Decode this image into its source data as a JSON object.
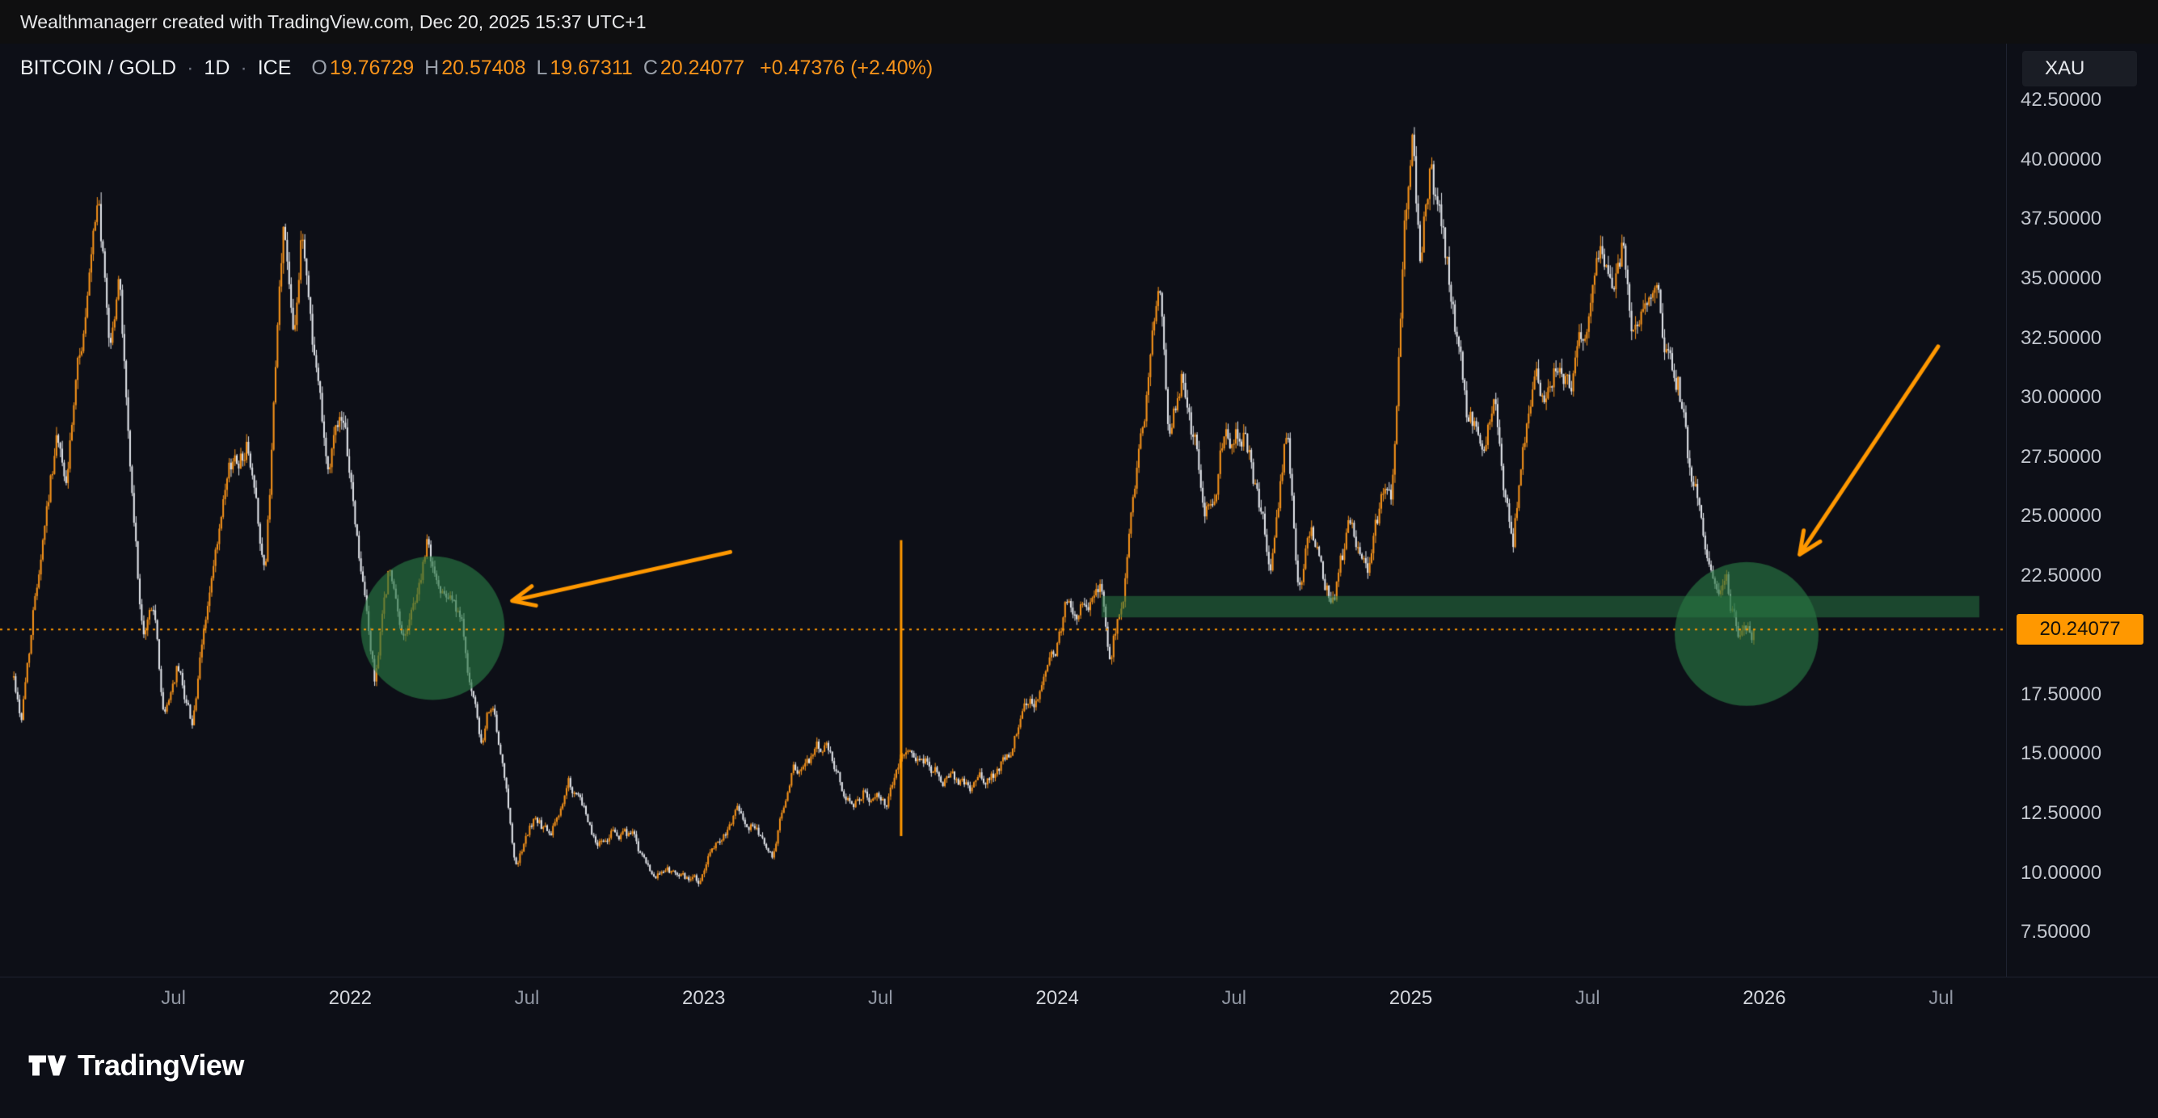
{
  "attribution": {
    "text": "Wealthmanagerr created with TradingView.com, Dec 20, 2025 15:37 UTC+1"
  },
  "header": {
    "symbol": "BITCOIN / GOLD",
    "sep1": "·",
    "timeframe": "1D",
    "sep2": "·",
    "exchange": "ICE",
    "ohlc": {
      "o_label": "O",
      "o": "19.76729",
      "h_label": "H",
      "h": "20.57408",
      "l_label": "L",
      "l": "19.67311",
      "c_label": "C",
      "c": "20.24077"
    },
    "change": "+0.47376 (+2.40%)"
  },
  "price_axis": {
    "currency": "XAU",
    "current_price_label": "20.24077",
    "labels": [
      {
        "text": "42.50000",
        "value": 42.5
      },
      {
        "text": "40.00000",
        "value": 40.0
      },
      {
        "text": "37.50000",
        "value": 37.5
      },
      {
        "text": "35.00000",
        "value": 35.0
      },
      {
        "text": "32.50000",
        "value": 32.5
      },
      {
        "text": "30.00000",
        "value": 30.0
      },
      {
        "text": "27.50000",
        "value": 27.5
      },
      {
        "text": "25.00000",
        "value": 25.0
      },
      {
        "text": "22.50000",
        "value": 22.5
      },
      {
        "text": "17.50000",
        "value": 17.5
      },
      {
        "text": "15.00000",
        "value": 15.0
      },
      {
        "text": "12.50000",
        "value": 12.5
      },
      {
        "text": "10.00000",
        "value": 10.0
      },
      {
        "text": "7.50000",
        "value": 7.5
      }
    ]
  },
  "time_axis": {
    "labels": [
      {
        "text": "Jul",
        "m": 6,
        "type": "month"
      },
      {
        "text": "2022",
        "m": 12,
        "type": "year"
      },
      {
        "text": "Jul",
        "m": 18,
        "type": "month"
      },
      {
        "text": "2023",
        "m": 24,
        "type": "year"
      },
      {
        "text": "Jul",
        "m": 30,
        "type": "month"
      },
      {
        "text": "2024",
        "m": 36,
        "type": "year"
      },
      {
        "text": "Jul",
        "m": 42,
        "type": "month"
      },
      {
        "text": "2025",
        "m": 48,
        "type": "year"
      },
      {
        "text": "Jul",
        "m": 54,
        "type": "month"
      },
      {
        "text": "2026",
        "m": 60,
        "type": "year"
      },
      {
        "text": "Jul",
        "m": 66,
        "type": "month"
      }
    ]
  },
  "logo": {
    "brand": "TradingView"
  },
  "chart_data": {
    "type": "candlestick",
    "title": "BITCOIN / GOLD ratio, 1D (bitcoin priced in gold ounces, XAU)",
    "x_unit": "months since 2021-01-01",
    "x_data_range": [
      0.55,
      59.65
    ],
    "x_view_range_months": [
      0,
      68.2
    ],
    "y_view_range": [
      5.6,
      44.8
    ],
    "ohlc_last": {
      "open": 19.76729,
      "high": 20.57408,
      "low": 19.67311,
      "close": 20.24077,
      "change": 0.47376,
      "change_pct": 2.4
    },
    "colors": {
      "up": "#f7931a",
      "down": "#e3e6ec",
      "annotation": "#ff9800",
      "zone_band": "rgba(40,118,66,0.55)",
      "zone_circle": "rgba(40,118,66,0.65)"
    },
    "price_points": [
      [
        0.55,
        18.2
      ],
      [
        0.8,
        16.6
      ],
      [
        1.2,
        21.0
      ],
      [
        1.6,
        25.5
      ],
      [
        2.0,
        28.8
      ],
      [
        2.3,
        26.0
      ],
      [
        2.8,
        31.0
      ],
      [
        3.45,
        36.8
      ],
      [
        3.8,
        31.5
      ],
      [
        4.15,
        34.8
      ],
      [
        4.6,
        25.0
      ],
      [
        4.95,
        19.3
      ],
      [
        5.3,
        21.2
      ],
      [
        5.65,
        16.3
      ],
      [
        6.1,
        18.6
      ],
      [
        6.6,
        16.4
      ],
      [
        7.2,
        21.5
      ],
      [
        7.9,
        25.8
      ],
      [
        8.5,
        28.2
      ],
      [
        9.1,
        22.6
      ],
      [
        9.7,
        36.2
      ],
      [
        10.05,
        33.4
      ],
      [
        10.35,
        37.4
      ],
      [
        10.8,
        32.0
      ],
      [
        11.25,
        27.6
      ],
      [
        11.6,
        29.8
      ],
      [
        12.0,
        26.0
      ],
      [
        12.8,
        17.9
      ],
      [
        13.3,
        22.6
      ],
      [
        13.7,
        19.4
      ],
      [
        14.1,
        21.0
      ],
      [
        14.6,
        23.6
      ],
      [
        15.0,
        21.5
      ],
      [
        15.4,
        22.8
      ],
      [
        15.9,
        19.5
      ],
      [
        16.45,
        14.9
      ],
      [
        16.8,
        17.0
      ],
      [
        17.6,
        10.2
      ],
      [
        18.3,
        12.3
      ],
      [
        18.8,
        11.3
      ],
      [
        19.4,
        13.6
      ],
      [
        19.9,
        12.2
      ],
      [
        20.35,
        11.1
      ],
      [
        21.0,
        12.0
      ],
      [
        21.6,
        11.4
      ],
      [
        22.3,
        9.2
      ],
      [
        22.75,
        9.9
      ],
      [
        23.3,
        9.5
      ],
      [
        23.85,
        9.4
      ],
      [
        24.5,
        11.2
      ],
      [
        25.05,
        12.3
      ],
      [
        25.8,
        12.2
      ],
      [
        26.35,
        10.8
      ],
      [
        27.0,
        14.3
      ],
      [
        27.6,
        14.6
      ],
      [
        28.1,
        15.1
      ],
      [
        28.75,
        13.6
      ],
      [
        29.4,
        13.9
      ],
      [
        30.2,
        12.9
      ],
      [
        30.85,
        15.8
      ],
      [
        31.5,
        15.4
      ],
      [
        32.1,
        14.6
      ],
      [
        32.6,
        13.9
      ],
      [
        33.3,
        13.6
      ],
      [
        34.0,
        14.0
      ],
      [
        34.45,
        15.1
      ],
      [
        35.0,
        17.3
      ],
      [
        35.6,
        18.0
      ],
      [
        36.05,
        19.8
      ],
      [
        36.35,
        21.6
      ],
      [
        36.7,
        20.2
      ],
      [
        37.1,
        21.2
      ],
      [
        37.45,
        22.6
      ],
      [
        37.8,
        19.6
      ],
      [
        38.4,
        23.5
      ],
      [
        39.0,
        29.5
      ],
      [
        39.5,
        33.7
      ],
      [
        39.8,
        28.8
      ],
      [
        40.25,
        31.3
      ],
      [
        41.0,
        26.3
      ],
      [
        41.75,
        29.8
      ],
      [
        42.4,
        28.7
      ],
      [
        42.8,
        26.2
      ],
      [
        43.25,
        23.2
      ],
      [
        43.8,
        28.6
      ],
      [
        44.2,
        20.9
      ],
      [
        44.6,
        24.4
      ],
      [
        45.0,
        22.5
      ],
      [
        45.35,
        21.6
      ],
      [
        46.0,
        24.5
      ],
      [
        46.5,
        22.5
      ],
      [
        47.05,
        25.4
      ],
      [
        47.35,
        25.0
      ],
      [
        47.75,
        36.0
      ],
      [
        48.05,
        41.0
      ],
      [
        48.35,
        35.6
      ],
      [
        48.65,
        39.3
      ],
      [
        49.0,
        37.0
      ],
      [
        49.4,
        33.6
      ],
      [
        49.95,
        28.8
      ],
      [
        50.45,
        28.9
      ],
      [
        50.8,
        30.6
      ],
      [
        51.15,
        27.2
      ],
      [
        51.45,
        23.6
      ],
      [
        52.2,
        31.8
      ],
      [
        52.65,
        29.8
      ],
      [
        53.1,
        32.3
      ],
      [
        53.45,
        30.6
      ],
      [
        53.85,
        31.8
      ],
      [
        54.45,
        35.9
      ],
      [
        54.85,
        33.9
      ],
      [
        55.2,
        36.3
      ],
      [
        55.6,
        33.2
      ],
      [
        55.95,
        35.5
      ],
      [
        56.3,
        34.0
      ],
      [
        56.7,
        31.5
      ],
      [
        57.1,
        30.8
      ],
      [
        57.5,
        26.4
      ],
      [
        57.9,
        25.3
      ],
      [
        58.15,
        23.3
      ],
      [
        58.45,
        20.8
      ],
      [
        58.7,
        22.3
      ],
      [
        58.95,
        21.0
      ],
      [
        59.2,
        19.7
      ],
      [
        59.45,
        20.6
      ],
      [
        59.65,
        20.24
      ]
    ],
    "annotations": {
      "dotted_price_line": 20.24077,
      "support_band": {
        "m_start": 37.5,
        "m_end": 67.3,
        "price_top": 21.65,
        "price_bottom": 20.75
      },
      "highlight_circles": [
        {
          "m": 14.8,
          "price": 20.3,
          "radius_px": 89
        },
        {
          "m": 59.4,
          "price": 20.05,
          "radius_px": 89
        }
      ],
      "arrows": [
        {
          "tail": {
            "m": 24.9,
            "price": 23.5
          },
          "head": {
            "m": 17.5,
            "price": 21.45
          }
        },
        {
          "tail": {
            "m": 65.9,
            "price": 32.15
          },
          "head": {
            "m": 61.2,
            "price": 23.4
          }
        }
      ],
      "vertical_spike": {
        "m": 30.7,
        "price_top": 24.0,
        "price_bottom": 11.55
      }
    }
  }
}
